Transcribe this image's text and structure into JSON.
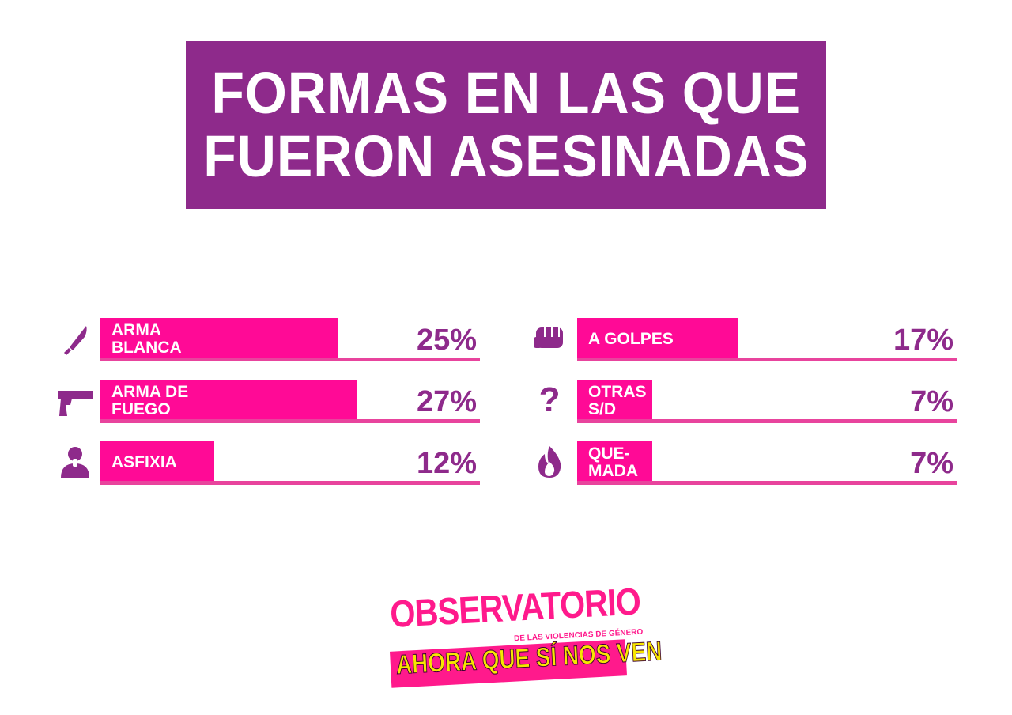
{
  "title": {
    "line1": "FORMAS EN LAS QUE",
    "line2": "FUERON ASESINADAS"
  },
  "colors": {
    "purple": "#8e2a8b",
    "pink": "#ff0a96",
    "underline": "#e8449d",
    "logo_pink": "#ff1a8c",
    "logo_yellow": "#f7e600"
  },
  "chart_data": {
    "type": "bar",
    "title": "FORMAS EN LAS QUE FUERON ASESINADAS",
    "ylim": [
      0,
      100
    ],
    "items": [
      {
        "label": [
          "ARMA",
          "BLANCA"
        ],
        "value": 25,
        "display": "25%",
        "icon": "knife-icon"
      },
      {
        "label": [
          "ARMA DE",
          "FUEGO"
        ],
        "value": 27,
        "display": "27%",
        "icon": "gun-icon"
      },
      {
        "label": [
          "ASFIXIA"
        ],
        "value": 12,
        "display": "12%",
        "icon": "asphyxia-icon"
      },
      {
        "label": [
          "A GOLPES"
        ],
        "value": 17,
        "display": "17%",
        "icon": "fist-icon"
      },
      {
        "label": [
          "OTRAS",
          "S/D"
        ],
        "value": 7,
        "display": "7%",
        "icon": "question-icon"
      },
      {
        "label": [
          "QUE-",
          "MADA"
        ],
        "value": 7,
        "display": "7%",
        "icon": "fire-icon"
      }
    ]
  },
  "logo": {
    "top": "OBSERVATORIO",
    "sub": "DE LAS VIOLENCIAS DE GÉNERO",
    "bottom": "AHORA QUE SÍ NOS VEN"
  }
}
